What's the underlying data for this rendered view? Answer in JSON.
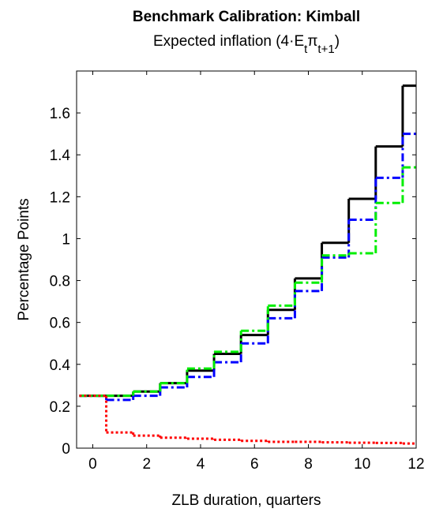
{
  "chart_data": {
    "type": "step",
    "title": "Benchmark Calibration: Kimball",
    "subtitle": [
      {
        "text": "Expected inflation (4·E"
      },
      {
        "text": "t",
        "sub": true
      },
      {
        "text": "π"
      },
      {
        "text": "t+1",
        "sub": true
      },
      {
        "text": ")"
      }
    ],
    "xlabel": "ZLB duration, quarters",
    "ylabel": "Percentage Points",
    "x": [
      0,
      1,
      2,
      3,
      4,
      5,
      6,
      7,
      8,
      9,
      10,
      11,
      12
    ],
    "series": [
      {
        "color": "#000000",
        "style": "solid",
        "values": [
          0.25,
          0.25,
          0.27,
          0.31,
          0.37,
          0.45,
          0.54,
          0.66,
          0.81,
          0.98,
          1.19,
          1.44,
          1.73
        ]
      },
      {
        "color": "#0000ff",
        "style": "dashdot",
        "values": [
          0.25,
          0.23,
          0.25,
          0.29,
          0.34,
          0.41,
          0.5,
          0.62,
          0.75,
          0.91,
          1.09,
          1.29,
          1.5
        ]
      },
      {
        "color": "#00ee00",
        "style": "dashdot",
        "values": [
          0.25,
          0.25,
          0.27,
          0.31,
          0.38,
          0.46,
          0.56,
          0.68,
          0.79,
          0.92,
          0.93,
          1.17,
          1.34
        ]
      },
      {
        "color": "#ff0000",
        "style": "dotted",
        "values": [
          0.25,
          0.075,
          0.06,
          0.05,
          0.045,
          0.04,
          0.035,
          0.03,
          0.03,
          0.028,
          0.026,
          0.025,
          0.022
        ]
      }
    ],
    "xlim": [
      -0.6,
      12
    ],
    "ylim": [
      0,
      1.8
    ],
    "xticks": [
      0,
      2,
      4,
      6,
      8,
      10,
      12
    ],
    "yticks": [
      0,
      0.2,
      0.4,
      0.6,
      0.8,
      1,
      1.2,
      1.4,
      1.6
    ]
  }
}
